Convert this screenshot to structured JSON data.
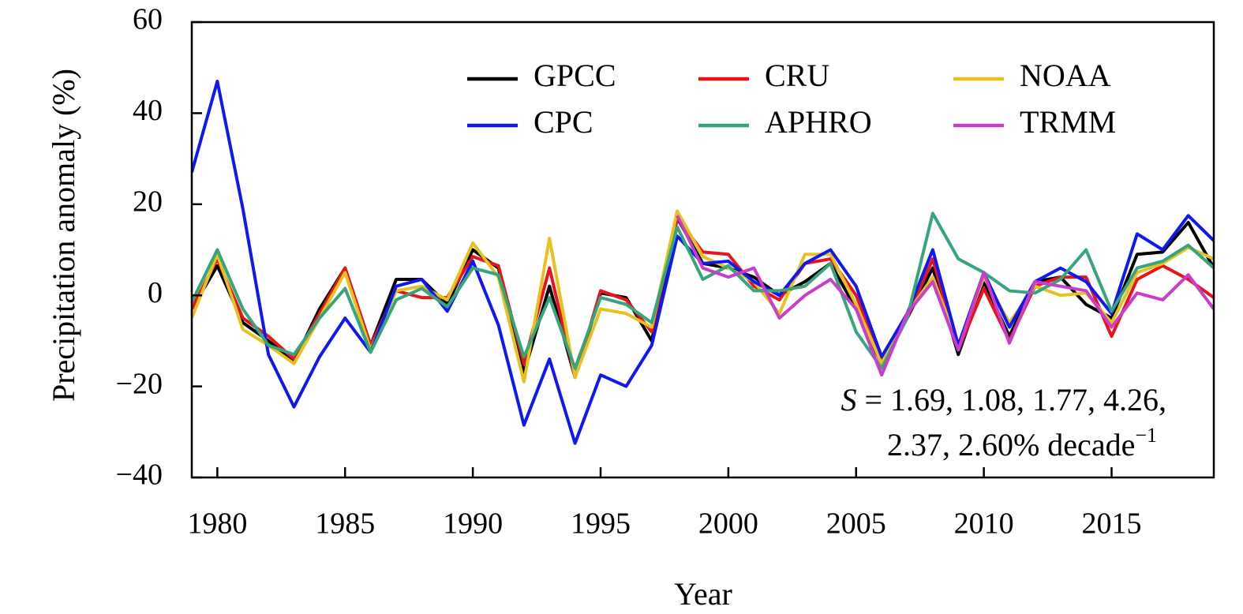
{
  "chart_data": {
    "type": "line",
    "xlabel": "Year",
    "ylabel": "Precipitation anomaly (%)",
    "xlim": [
      1979,
      2019
    ],
    "ylim": [
      -40,
      60
    ],
    "x_ticks": [
      1980,
      1985,
      1990,
      1995,
      2000,
      2005,
      2010,
      2015
    ],
    "y_ticks": [
      -40,
      -20,
      0,
      20,
      40,
      60
    ],
    "x_tick_labels": [
      "1980",
      "1985",
      "1990",
      "1995",
      "2000",
      "2005",
      "2010",
      "2015"
    ],
    "y_tick_labels": [
      "−40",
      "−20",
      "0",
      "20",
      "40",
      "60"
    ],
    "grid": false,
    "legend_position": "top-right",
    "x": [
      1979,
      1980,
      1981,
      1982,
      1983,
      1984,
      1985,
      1986,
      1987,
      1988,
      1989,
      1990,
      1991,
      1992,
      1993,
      1994,
      1995,
      1996,
      1997,
      1998,
      1999,
      2000,
      2001,
      2002,
      2003,
      2004,
      2005,
      2006,
      2007,
      2008,
      2009,
      2010,
      2011,
      2012,
      2013,
      2014,
      2015,
      2016,
      2017,
      2018,
      2019
    ],
    "series": [
      {
        "name": "GPCC",
        "color": "#000000",
        "values": [
          -3,
          6.5,
          -6,
          -10,
          -14.5,
          -3,
          6,
          -11,
          3.5,
          3.5,
          -2,
          10,
          6,
          -17,
          2,
          -18,
          0.5,
          -0.5,
          -10,
          17,
          7,
          6,
          4,
          0,
          3,
          7,
          -3,
          -15,
          -5,
          6,
          -13,
          3,
          -9,
          3,
          4,
          -2,
          -5,
          9,
          9.5,
          16,
          6
        ]
      },
      {
        "name": "CRU",
        "color": "#e8141a",
        "values": [
          -3,
          8,
          -5,
          -9,
          -14,
          -4,
          6,
          -11,
          1,
          -0.5,
          -0.5,
          8.5,
          6.5,
          -15,
          6,
          -18,
          1,
          -1,
          -8,
          17,
          9.5,
          9,
          2,
          -1,
          7,
          8,
          0,
          -14,
          -5,
          8,
          -12,
          1.5,
          -10,
          2,
          4,
          4,
          -9,
          3.5,
          6.5,
          3.5,
          -0.5
        ]
      },
      {
        "name": "NOAA",
        "color": "#e6c221",
        "values": [
          -5,
          9,
          -7.5,
          -11,
          -15,
          -5,
          5,
          -12,
          1,
          2,
          -1,
          11.5,
          4,
          -19,
          12.5,
          -18,
          -3,
          -4,
          -7,
          18.5,
          8.5,
          6,
          3,
          -4,
          9,
          9,
          -2,
          -15,
          -4,
          4,
          -11,
          4,
          -6,
          2,
          0,
          0.5,
          -6,
          5,
          7,
          10.5,
          8
        ]
      },
      {
        "name": "CPC",
        "color": "#0f18f0",
        "values": [
          27,
          47,
          19,
          -13,
          -24.5,
          -13.5,
          -5,
          -12.5,
          2,
          3.5,
          -3.5,
          7.5,
          -6.5,
          -28.5,
          -14,
          -32.5,
          -17.5,
          -20,
          -11,
          13,
          7,
          7.5,
          3,
          0,
          7,
          10,
          2,
          -13.5,
          -4,
          10,
          -11,
          5,
          -7,
          3,
          6,
          3,
          -4,
          13.5,
          10,
          17.5,
          12
        ]
      },
      {
        "name": "APHRO",
        "color": "#36a57c",
        "values": [
          -1.5,
          10,
          -3,
          -11,
          -13,
          -5,
          1.5,
          -12.5,
          -1,
          1.5,
          -2.5,
          6,
          4.5,
          -13.5,
          -0.5,
          -16,
          -0.5,
          -2,
          -6,
          15,
          3.5,
          6.5,
          1,
          1,
          2,
          7,
          -8,
          -16,
          -5,
          18,
          8,
          5,
          1,
          0.5,
          3.5,
          10,
          -3.5,
          6,
          7.5,
          11,
          6
        ]
      },
      {
        "name": "TRMM",
        "color": "#c83dc9",
        "values": [
          null,
          null,
          null,
          null,
          null,
          null,
          null,
          null,
          null,
          null,
          null,
          null,
          null,
          null,
          null,
          null,
          null,
          null,
          null,
          17.5,
          6,
          4,
          6,
          -5,
          0,
          3.5,
          -3,
          -17.5,
          -4,
          3,
          -12,
          5,
          -10.5,
          3,
          2,
          1,
          -7,
          0.5,
          -1,
          4.5,
          -3
        ]
      }
    ],
    "annotation_lines": [
      {
        "italic": "S",
        "text": " = 1.69, 1.08, 1.77, 4.26,"
      },
      {
        "text": "2.37, 2.60% decade",
        "superscript": "−1"
      }
    ]
  }
}
